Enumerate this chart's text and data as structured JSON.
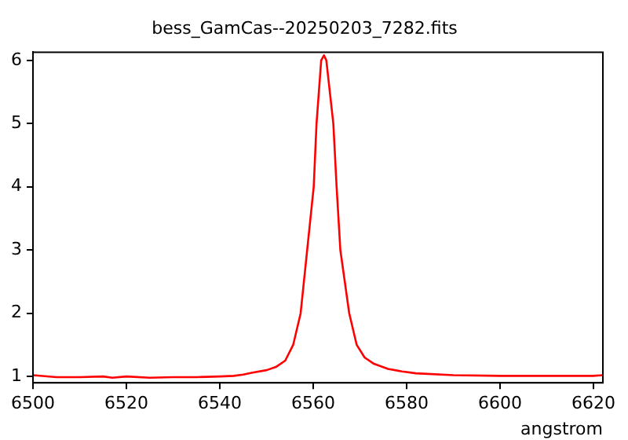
{
  "chart_data": {
    "type": "line",
    "title": "bess_GamCas--20250203_7282.fits",
    "xlabel": "angstrom",
    "x": [
      6500,
      6505,
      6510,
      6515,
      6517,
      6520,
      6525,
      6530,
      6535,
      6540,
      6543,
      6545,
      6547,
      6550,
      6552,
      6554,
      6555.7,
      6557.3,
      6558.7,
      6560.1,
      6560.7,
      6561.7,
      6562.3,
      6562.8,
      6564.3,
      6565,
      6565.8,
      6567.7,
      6569.3,
      6571,
      6573,
      6576,
      6579,
      6582,
      6590,
      6600,
      6610,
      6620,
      6622
    ],
    "series": [
      {
        "color": "#ff0000",
        "values": [
          1.02,
          0.99,
          0.99,
          1.0,
          0.98,
          1.0,
          0.98,
          0.99,
          0.99,
          1.0,
          1.01,
          1.03,
          1.06,
          1.1,
          1.15,
          1.25,
          1.5,
          2,
          3,
          4,
          5,
          6,
          6.08,
          6,
          5,
          4,
          3,
          2,
          1.5,
          1.3,
          1.2,
          1.12,
          1.08,
          1.05,
          1.02,
          1.01,
          1.01,
          1.01,
          1.02
        ]
      }
    ],
    "xlim": [
      6500,
      6622
    ],
    "xticks": [
      6500,
      6520,
      6540,
      6560,
      6580,
      6600,
      6620
    ],
    "ylim": [
      0.9,
      6.13
    ],
    "yticks": [
      1,
      2,
      3,
      4,
      5,
      6
    ],
    "grid": false,
    "legend": false,
    "marker": "none",
    "line_style": "solid"
  }
}
